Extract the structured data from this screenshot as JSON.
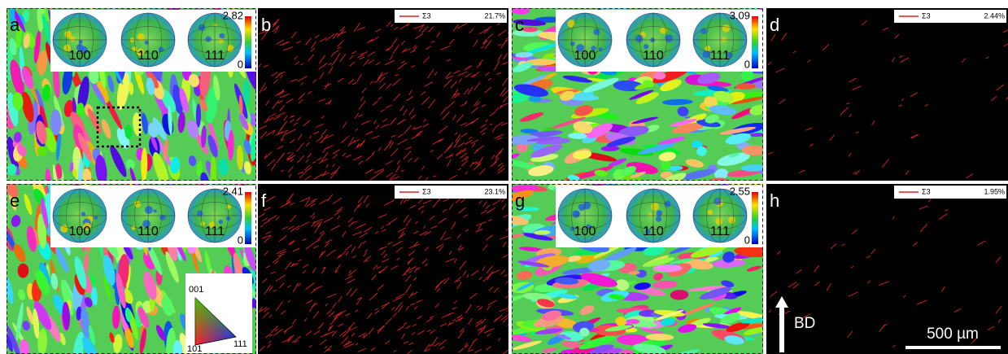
{
  "panels": [
    {
      "label": "a",
      "pole_figures": [
        "100",
        "110",
        "111"
      ],
      "colorbar_max": "2.82",
      "colorbar_min": "0"
    },
    {
      "label": "b",
      "legend": "Σ3",
      "fraction": "21.7%"
    },
    {
      "label": "c",
      "pole_figures": [
        "100",
        "110",
        "111"
      ],
      "colorbar_max": "3.09",
      "colorbar_min": "0"
    },
    {
      "label": "d",
      "legend": "Σ3",
      "fraction": "2.44%"
    },
    {
      "label": "e",
      "pole_figures": [
        "100",
        "110",
        "111"
      ],
      "colorbar_max": "2.41",
      "colorbar_min": "0"
    },
    {
      "label": "f",
      "legend": "Σ3",
      "fraction": "23.1%"
    },
    {
      "label": "g",
      "pole_figures": [
        "100",
        "110",
        "111"
      ],
      "colorbar_max": "2.55",
      "colorbar_min": "0"
    },
    {
      "label": "h",
      "legend": "Σ3",
      "fraction": "1.95%"
    }
  ],
  "ipf_key": {
    "top": "001",
    "left": "101",
    "right": "111"
  },
  "build_direction": "BD",
  "scale_bar": "500 µm"
}
